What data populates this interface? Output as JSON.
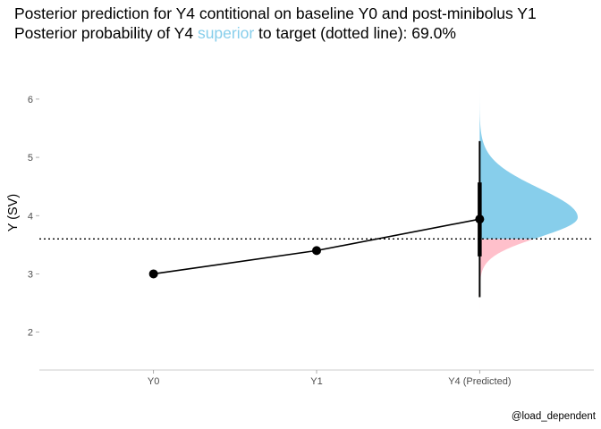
{
  "chart_data": {
    "type": "line",
    "title": {
      "line1": "Posterior prediction for Y4 contitional on baseline Y0 and post-minibolus Y1",
      "line2_prefix": "Posterior probability of Y4",
      "line2_highlight": "superior",
      "line2_suffix": "to target (dotted line): 69.0%"
    },
    "highlight_color": "#87ceeb",
    "below_color": "#ffc0cb",
    "line_color": "#000000",
    "ylabel": "Y (SV)",
    "xlabel": "",
    "categories": [
      "Y0",
      "Y1",
      "Y4 (Predicted)"
    ],
    "values": [
      3.0,
      3.4,
      3.94
    ],
    "ylim": [
      1.35,
      6.75
    ],
    "yticks": [
      2,
      3,
      4,
      5,
      6
    ],
    "target": 3.6,
    "probability_superior": 0.69,
    "interval_thick": [
      3.3,
      4.57
    ],
    "interval_thin": [
      2.6,
      5.28
    ],
    "distribution": {
      "mode": 3.97,
      "sd_below": 0.34,
      "sd_above": 0.5,
      "min": 1.55,
      "max": 6.7
    },
    "caption": "@load_dependent"
  }
}
